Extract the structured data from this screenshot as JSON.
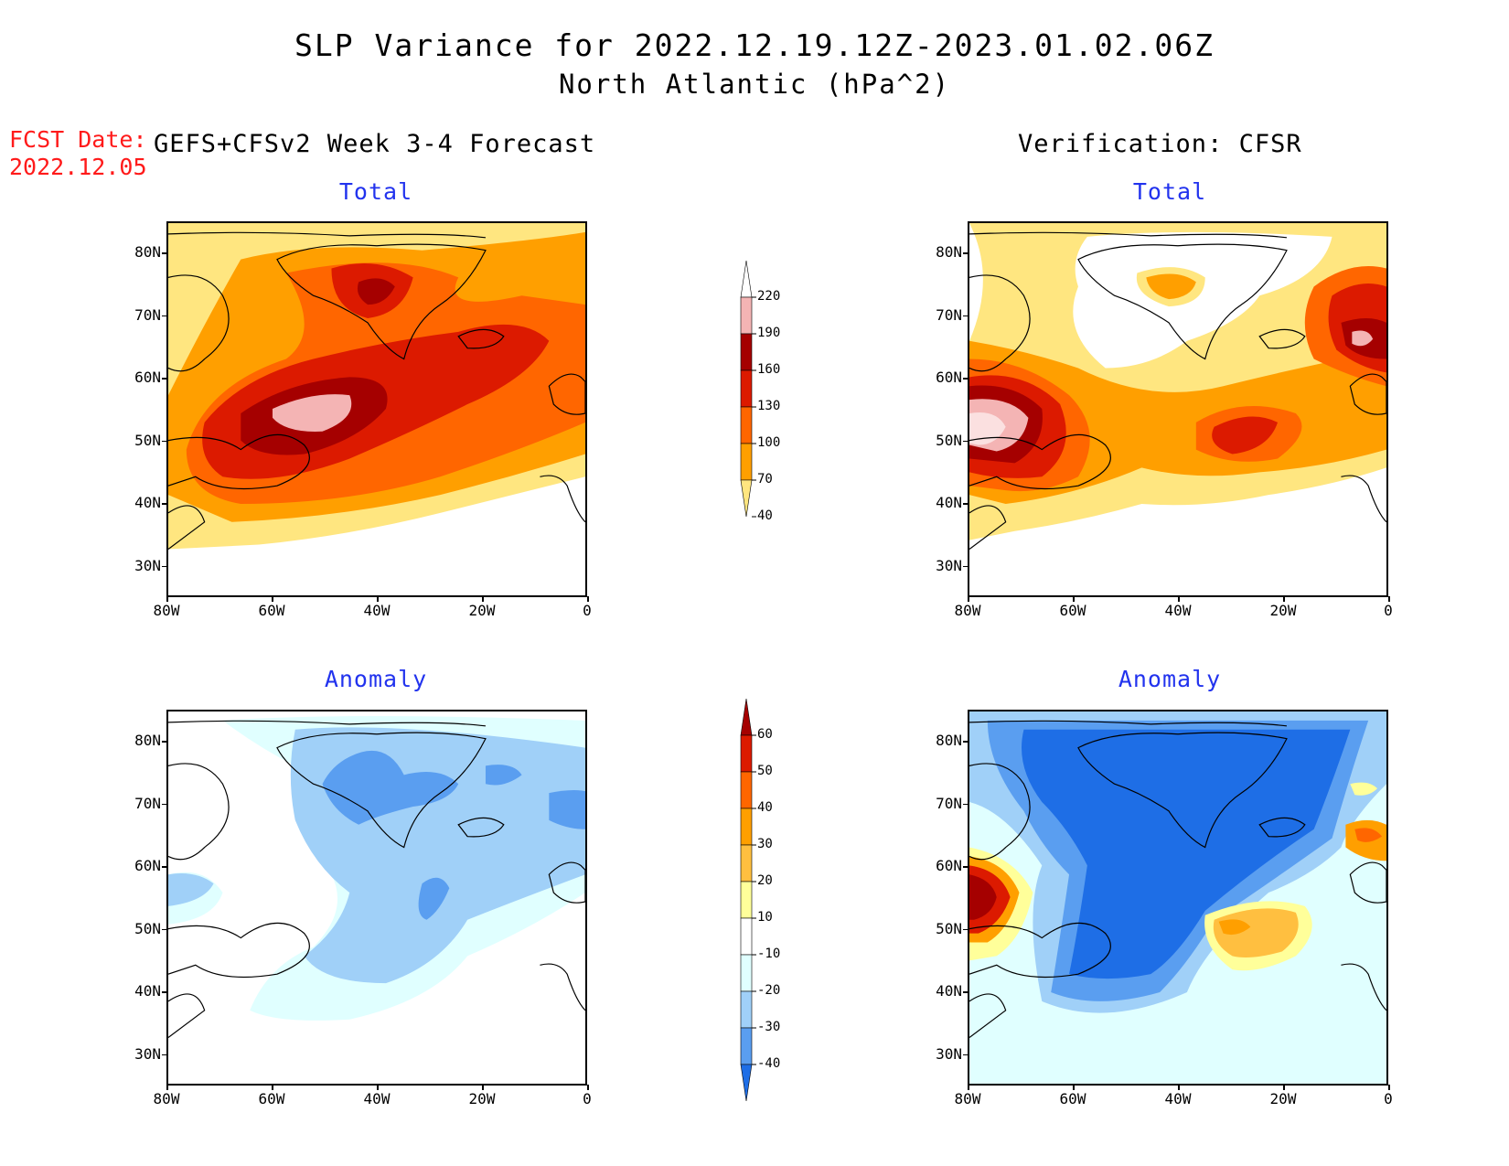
{
  "title": {
    "line1": "SLP Variance for 2022.12.19.12Z-2023.01.02.06Z",
    "line2": "North Atlantic (hPa^2)"
  },
  "forecast": {
    "date_label": "FCST Date:",
    "date_value": "2022.12.05"
  },
  "columns": {
    "left": "GEFS+CFSv2 Week 3-4 Forecast",
    "right": "Verification: CFSR"
  },
  "panel_titles": {
    "total": "Total",
    "anomaly": "Anomaly"
  },
  "axes": {
    "lat_labels": [
      "80N",
      "70N",
      "60N",
      "50N",
      "40N",
      "30N"
    ],
    "lon_labels": [
      "80W",
      "60W",
      "40W",
      "20W",
      "0"
    ],
    "lat_range": [
      25,
      85
    ],
    "lon_range": [
      -80,
      0
    ]
  },
  "colorbars": {
    "total": {
      "levels": [
        "220",
        "190",
        "160",
        "130",
        "100",
        "70",
        "40"
      ],
      "colors": [
        "#ffffff",
        "#f4b4b4",
        "#a50000",
        "#dc1a00",
        "#ff6600",
        "#ff9f00",
        "#ffe680"
      ]
    },
    "anomaly": {
      "levels": [
        "60",
        "50",
        "40",
        "30",
        "20",
        "10",
        "-10",
        "-20",
        "-30",
        "-40"
      ],
      "colors": [
        "#a50000",
        "#dc1a00",
        "#ff6600",
        "#ff9f00",
        "#ffbf40",
        "#ffff9a",
        "#ffffff",
        "#e0ffff",
        "#a0d0f8",
        "#5a9ef0",
        "#1e6ee6"
      ]
    }
  },
  "palette": {
    "white": "#ffffff",
    "yellow": "#ffe680",
    "orange": "#ff9f00",
    "dark_orange": "#ff6600",
    "red": "#dc1a00",
    "dark_red": "#a50000",
    "pink": "#f4b4b4",
    "light_pink": "#fbe0e0",
    "ice": "#e0ffff",
    "light_blue": "#a0d0f8",
    "mid_blue": "#5a9ef0",
    "blue": "#1e6ee6",
    "deep_blue": "#1658d6",
    "pale_yellow": "#ffff9a",
    "light_orange": "#ffbf40"
  }
}
